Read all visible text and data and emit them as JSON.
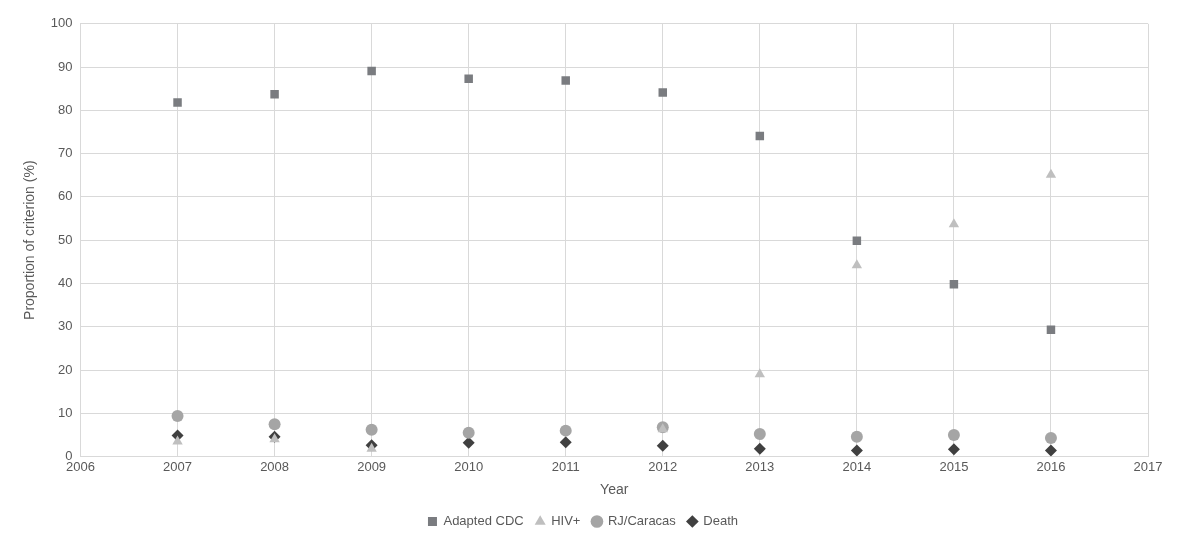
{
  "chart_data": {
    "type": "scatter",
    "xlabel": "Year",
    "ylabel": "Proportion of criterion (%)",
    "x": [
      2007,
      2008,
      2009,
      2010,
      2011,
      2012,
      2013,
      2014,
      2015,
      2016
    ],
    "series": [
      {
        "name": "Adapted CDC",
        "color": "#7a7c80",
        "marker": "square",
        "values": [
          81.8,
          83.7,
          89.1,
          87.3,
          86.9,
          84.1,
          74.1,
          49.9,
          39.8,
          29.3
        ]
      },
      {
        "name": "HIV+",
        "color": "#bfbfbf",
        "marker": "triangle",
        "values": [
          3.5,
          4.0,
          1.8,
          null,
          null,
          6.3,
          19.0,
          44.2,
          53.7,
          65.1
        ]
      },
      {
        "name": "RJ/Caracas",
        "color": "#a5a5a5",
        "marker": "circle",
        "values": [
          9.4,
          7.5,
          6.2,
          5.5,
          6.0,
          6.8,
          5.2,
          4.6,
          5.0,
          4.3
        ]
      },
      {
        "name": "Death",
        "color": "#404040",
        "marker": "diamond",
        "values": [
          4.9,
          4.6,
          2.6,
          3.2,
          3.3,
          2.5,
          1.8,
          1.4,
          1.7,
          1.4
        ]
      }
    ],
    "xlim": [
      2006,
      2017
    ],
    "xticks": [
      2006,
      2007,
      2008,
      2009,
      2010,
      2011,
      2012,
      2013,
      2014,
      2015,
      2016,
      2017
    ],
    "ylim": [
      0,
      100
    ],
    "yticks": [
      0,
      10,
      20,
      30,
      40,
      50,
      60,
      70,
      80,
      90,
      100
    ],
    "grid": true,
    "legend": "bottom"
  }
}
